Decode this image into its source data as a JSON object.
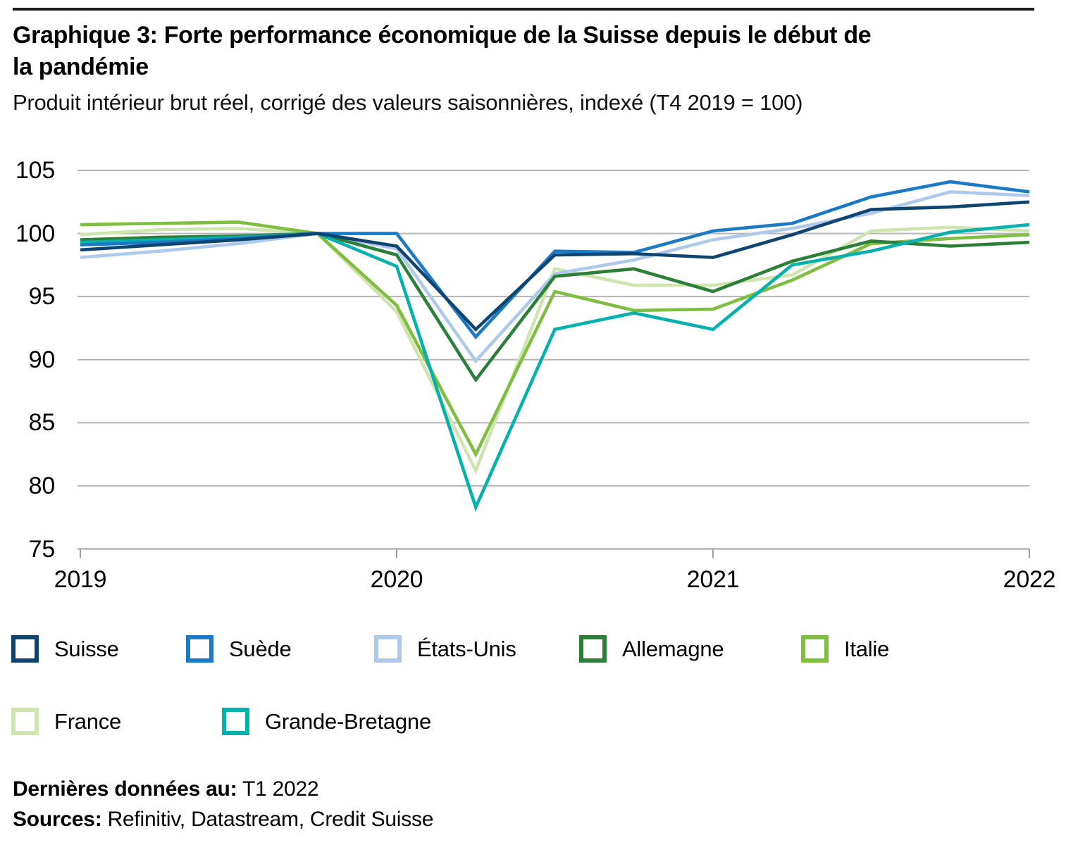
{
  "header": {
    "title_lines": [
      "Graphique 3: Forte performance économique de la Suisse depuis le début de",
      "la pandémie"
    ],
    "subtitle": "Produit intérieur brut réel, corrigé des valeurs saisonnières, indexé (T4 2019 = 100)"
  },
  "chart_data": {
    "type": "line",
    "title": "Graphique 3: Forte performance économique de la Suisse depuis le début de la pandémie",
    "subtitle": "Produit intérieur brut réel, corrigé des valeurs saisonnières, indexé (T4 2019 = 100)",
    "x_quarters": [
      "T1 2019",
      "T2 2019",
      "T3 2019",
      "T4 2019",
      "T1 2020",
      "T2 2020",
      "T3 2020",
      "T4 2020",
      "T1 2021",
      "T2 2021",
      "T3 2021",
      "T4 2021",
      "T1 2022"
    ],
    "x_tick_labels": [
      "2019",
      "2020",
      "2021",
      "2022"
    ],
    "y_ticks": [
      105,
      100,
      95,
      90,
      85,
      80,
      75
    ],
    "ylim": [
      75,
      105
    ],
    "grid": "horizontal",
    "gridline_color": "#b5b5b5",
    "axis_color": "#a0a0a0",
    "legend_position": "bottom",
    "series": [
      {
        "name": "Suisse",
        "color": "#104470",
        "values": [
          98.7,
          99.1,
          99.5,
          100,
          99.0,
          92.4,
          98.3,
          98.4,
          98.1,
          99.9,
          101.9,
          102.1,
          102.5
        ]
      },
      {
        "name": "Suède",
        "color": "#1b7ac3",
        "values": [
          99.1,
          99.3,
          99.6,
          100,
          100.0,
          91.8,
          98.6,
          98.5,
          100.2,
          100.8,
          102.9,
          104.1,
          103.3
        ]
      },
      {
        "name": "États-Unis",
        "color": "#aec9e9",
        "values": [
          98.1,
          98.6,
          99.2,
          100,
          98.8,
          89.9,
          96.8,
          97.9,
          99.5,
          100.4,
          101.6,
          103.3,
          103.0
        ]
      },
      {
        "name": "Allemagne",
        "color": "#2b7f38",
        "values": [
          99.5,
          99.7,
          99.8,
          100,
          98.3,
          88.4,
          96.6,
          97.2,
          95.4,
          97.8,
          99.4,
          99.0,
          99.3
        ]
      },
      {
        "name": "Italie",
        "color": "#7fbe40",
        "values": [
          100.7,
          100.8,
          100.9,
          100,
          94.3,
          82.5,
          95.4,
          93.9,
          94.0,
          96.3,
          99.2,
          99.6,
          99.9
        ]
      },
      {
        "name": "France",
        "color": "#cfe4ae",
        "values": [
          99.9,
          100.3,
          100.4,
          100,
          93.8,
          81.2,
          97.2,
          95.9,
          95.9,
          96.7,
          100.2,
          100.5,
          100.2
        ]
      },
      {
        "name": "Grande-Bretagne",
        "color": "#06b0ac",
        "values": [
          99.3,
          99.5,
          99.7,
          100,
          97.4,
          78.3,
          92.4,
          93.7,
          92.4,
          97.5,
          98.6,
          100.1,
          100.7
        ]
      }
    ]
  },
  "footer": {
    "last_data_label": "Dernières données au:",
    "last_data_value": " T1 2022",
    "sources_label": "Sources:",
    "sources_value": " Refinitiv, Datastream, Credit Suisse"
  }
}
